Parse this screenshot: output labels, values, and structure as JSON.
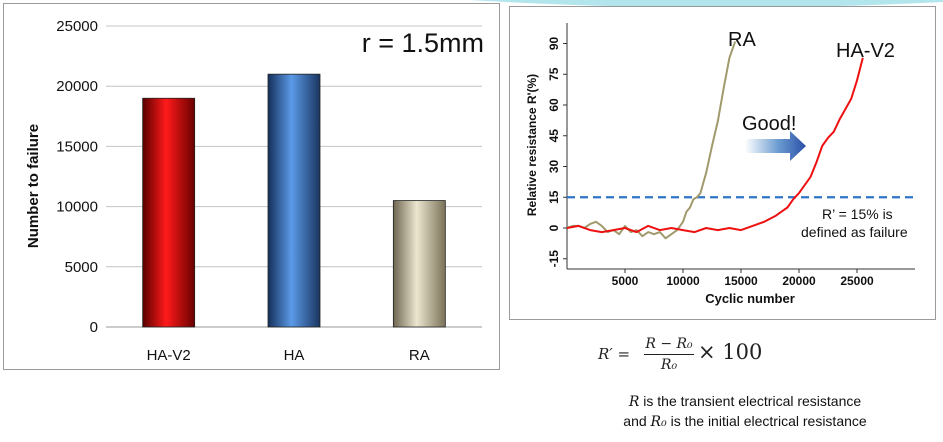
{
  "chart_data": [
    {
      "type": "bar",
      "categories": [
        "HA-V2",
        "HA",
        "RA"
      ],
      "values": [
        19000,
        21000,
        10500
      ],
      "colors": [
        "#d00000",
        "#3f7fd6",
        "#c9bfa0"
      ],
      "ylabel": "Number to failure",
      "ylim": [
        0,
        25000
      ],
      "yticks": [
        "0",
        "5000",
        "10000",
        "15000",
        "20000",
        "25000"
      ],
      "annotation": "r = 1.5mm",
      "grid": true
    },
    {
      "type": "line",
      "xlabel": "Cyclic number",
      "ylabel": "Relative resistance R'(%)",
      "xlim": [
        0,
        30000
      ],
      "ylim": [
        -20,
        100
      ],
      "xticks": [
        "5000",
        "10000",
        "15000",
        "20000",
        "25000"
      ],
      "yticks": [
        "-15",
        "0",
        "15",
        "30",
        "45",
        "60",
        "75",
        "90"
      ],
      "series": [
        {
          "name": "RA",
          "color": "#a09a6c",
          "x": [
            0,
            500,
            1000,
            1500,
            2000,
            2500,
            3000,
            3500,
            4000,
            4500,
            5000,
            5500,
            6000,
            6500,
            7000,
            7500,
            8000,
            8500,
            9000,
            9500,
            10000,
            10300,
            10600,
            10900,
            11200,
            11500,
            12000,
            12500,
            13000,
            13500,
            14000,
            14500
          ],
          "y": [
            0,
            1,
            1,
            0,
            2,
            3,
            1,
            -2,
            -1,
            -3,
            1,
            -2,
            -1,
            -4,
            -2,
            -3,
            -2,
            -5,
            -3,
            -1,
            3,
            8,
            10,
            14,
            15,
            17,
            27,
            40,
            52,
            68,
            83,
            91
          ]
        },
        {
          "name": "HA-V2",
          "color": "#ee1111",
          "x": [
            0,
            1000,
            2000,
            3000,
            4000,
            5000,
            6000,
            7000,
            8000,
            9000,
            10000,
            11000,
            12000,
            13000,
            14000,
            15000,
            16000,
            17000,
            18000,
            18500,
            19000,
            19500,
            20000,
            20500,
            21000,
            21500,
            22000,
            22500,
            23000,
            23500,
            24000,
            24500,
            25000,
            25500
          ],
          "y": [
            0,
            1,
            -1,
            -2,
            -1,
            0,
            -2,
            1,
            -1,
            0,
            -1,
            -2,
            0,
            -1,
            0,
            -1,
            1,
            3,
            6,
            8,
            10,
            14,
            17,
            21,
            25,
            32,
            40,
            44,
            47,
            53,
            58,
            63,
            72,
            83
          ]
        }
      ],
      "threshold": {
        "y": 15
      },
      "annotations": {
        "ra": "RA",
        "hav2": "HA-V2",
        "good": "Good!",
        "failure_line1": "R’ = 15% is",
        "failure_line2": "defined as failure"
      }
    }
  ],
  "formula": {
    "lhs": "R′ =",
    "numerator": "R − R₀",
    "denominator": "R₀",
    "rhs": "× 100"
  },
  "description": {
    "line1_var": "R",
    "line1_text": " is the transient electrical resistance",
    "line2_prefix": "and ",
    "line2_var": "R₀",
    "line2_text": " is the initial electrical resistance"
  }
}
